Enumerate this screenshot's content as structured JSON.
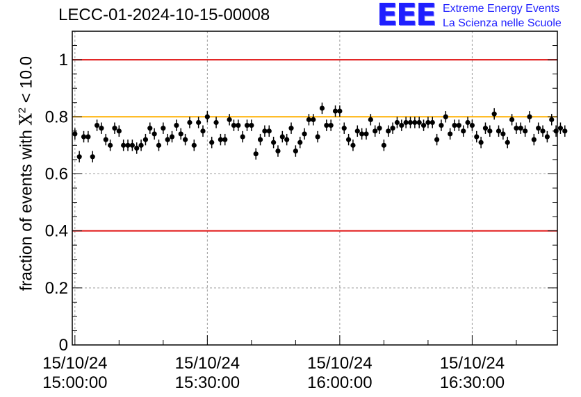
{
  "header": {
    "run_title": "LECC-01-2024-10-15-00008"
  },
  "logo": {
    "mark": "EEE",
    "line1": "Extreme Energy Events",
    "line2": "La Scienza nelle Scuole",
    "color": "#1f1fff"
  },
  "chart_data": {
    "type": "scatter",
    "title": "LECC-01-2024-10-15-00008",
    "ylabel_prefix": "fraction of events with ",
    "ylabel_symbol": "X",
    "ylabel_sup": "2",
    "ylabel_suffix": " < 10.0",
    "ylim": [
      0,
      1.1
    ],
    "xlim_minutes": [
      -0.6,
      109.3
    ],
    "x_ticks": [
      {
        "minute": 0,
        "date": "15/10/24",
        "time": "15:00:00"
      },
      {
        "minute": 30,
        "date": "15/10/24",
        "time": "15:30:00"
      },
      {
        "minute": 60,
        "date": "15/10/24",
        "time": "16:00:00"
      },
      {
        "minute": 90,
        "date": "15/10/24",
        "time": "16:30:00"
      }
    ],
    "y_ticks": [
      0,
      0.2,
      0.4,
      0.6,
      0.8,
      1
    ],
    "y_tick_labels": [
      "0",
      "0.2",
      "0.4",
      "0.6",
      "0.8",
      "1"
    ],
    "grid": true,
    "reference_lines": [
      {
        "y": 1.0,
        "color": "#e01010"
      },
      {
        "y": 0.8,
        "color": "#ffb000"
      },
      {
        "y": 0.4,
        "color": "#e01010"
      }
    ],
    "marker_color": "#000000",
    "error": 0.02,
    "values": [
      0.74,
      0.66,
      0.73,
      0.73,
      0.66,
      0.77,
      0.76,
      0.72,
      0.7,
      0.76,
      0.75,
      0.7,
      0.7,
      0.7,
      0.69,
      0.7,
      0.72,
      0.76,
      0.74,
      0.7,
      0.76,
      0.72,
      0.73,
      0.77,
      0.74,
      0.72,
      0.78,
      0.7,
      0.78,
      0.75,
      0.8,
      0.71,
      0.78,
      0.72,
      0.72,
      0.79,
      0.77,
      0.77,
      0.73,
      0.77,
      0.77,
      0.67,
      0.72,
      0.75,
      0.75,
      0.71,
      0.68,
      0.73,
      0.72,
      0.76,
      0.68,
      0.71,
      0.74,
      0.79,
      0.79,
      0.73,
      0.83,
      0.77,
      0.77,
      0.82,
      0.82,
      0.76,
      0.72,
      0.7,
      0.75,
      0.74,
      0.74,
      0.79,
      0.75,
      0.76,
      0.7,
      0.75,
      0.76,
      0.78,
      0.77,
      0.78,
      0.78,
      0.78,
      0.78,
      0.77,
      0.78,
      0.78,
      0.72,
      0.77,
      0.8,
      0.74,
      0.77,
      0.77,
      0.75,
      0.78,
      0.77,
      0.73,
      0.71,
      0.76,
      0.75,
      0.81,
      0.75,
      0.74,
      0.71,
      0.79,
      0.76,
      0.76,
      0.75,
      0.8,
      0.72,
      0.76,
      0.75,
      0.73,
      0.79,
      0.75,
      0.76,
      0.75
    ]
  }
}
